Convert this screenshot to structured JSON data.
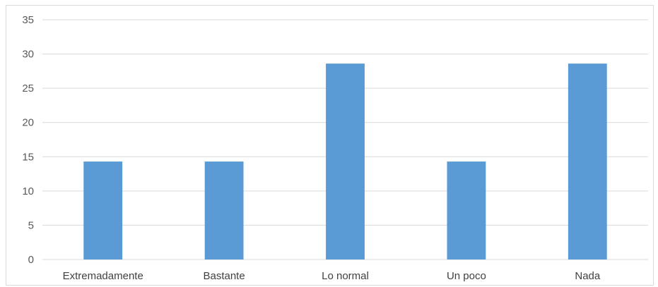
{
  "chart_data": {
    "type": "bar",
    "categories": [
      "Extremadamente",
      "Bastante",
      "Lo normal",
      "Un poco",
      "Nada"
    ],
    "values": [
      14.3,
      14.3,
      28.6,
      14.3,
      28.6
    ],
    "title": "",
    "xlabel": "",
    "ylabel": "",
    "ylim": [
      0,
      35
    ],
    "yticks": [
      0,
      5,
      10,
      15,
      20,
      25,
      30,
      35
    ],
    "grid": true,
    "legend": "none",
    "bar_color": "#5b9bd5",
    "grid_color": "#d9d9d9"
  }
}
